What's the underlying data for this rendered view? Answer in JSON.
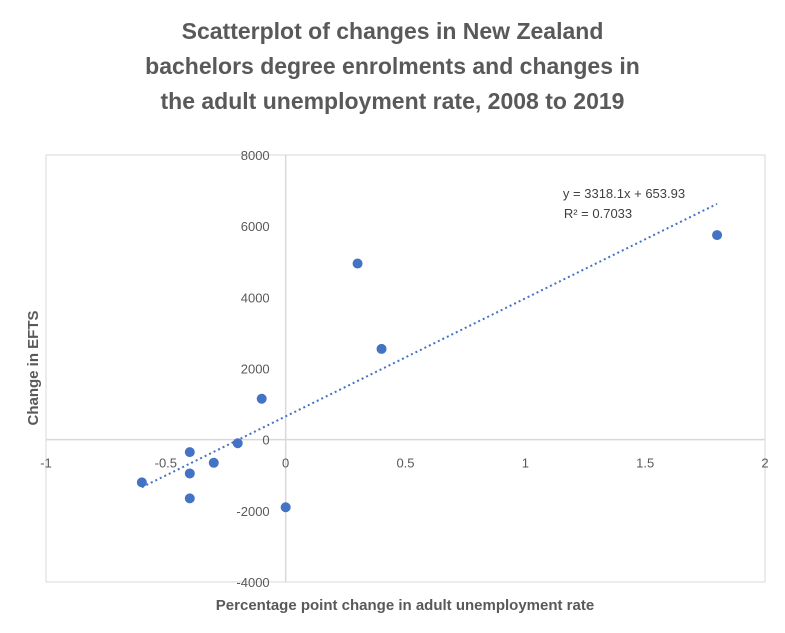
{
  "chart_data": {
    "type": "scatter",
    "title_lines": [
      "Scatterplot of changes in New Zealand",
      "bachelors degree enrolments and changes in",
      "the adult unemployment rate, 2008 to 2019"
    ],
    "xlabel": "Percentage point change in adult unemployment rate",
    "ylabel": "Change in EFTS",
    "xlim": [
      -1,
      2
    ],
    "ylim": [
      -4000,
      8000
    ],
    "x_ticks": [
      -1,
      -0.5,
      0,
      0.5,
      1,
      1.5,
      2
    ],
    "x_tick_labels": [
      "-1",
      "-0.5",
      "0",
      "0.5",
      "1",
      "1.5",
      "2"
    ],
    "y_ticks": [
      -4000,
      -2000,
      0,
      2000,
      4000,
      6000,
      8000
    ],
    "y_tick_labels": [
      "-4000",
      "-2000",
      "0",
      "2000",
      "4000",
      "6000",
      "8000"
    ],
    "points": [
      {
        "x": -0.6,
        "y": -1200
      },
      {
        "x": -0.4,
        "y": -350
      },
      {
        "x": -0.4,
        "y": -950
      },
      {
        "x": -0.4,
        "y": -1650
      },
      {
        "x": -0.3,
        "y": -650
      },
      {
        "x": -0.2,
        "y": -100
      },
      {
        "x": -0.1,
        "y": 1150
      },
      {
        "x": 0.0,
        "y": -1900
      },
      {
        "x": 0.3,
        "y": 4950
      },
      {
        "x": 0.4,
        "y": 2550
      },
      {
        "x": 1.8,
        "y": 5750
      }
    ],
    "trendline": {
      "type": "linear",
      "slope": 3318.1,
      "intercept": 653.93,
      "x_range": [
        -0.6,
        1.8
      ],
      "equation_label": "y = 3318.1x + 653.93",
      "r2_label": "R² = 0.7033"
    },
    "grid": false,
    "legend": "none",
    "colors": {
      "marker": "#4472C4",
      "trendline": "#4472C4",
      "axis": "#d9d9d9",
      "text": "#595959"
    }
  }
}
